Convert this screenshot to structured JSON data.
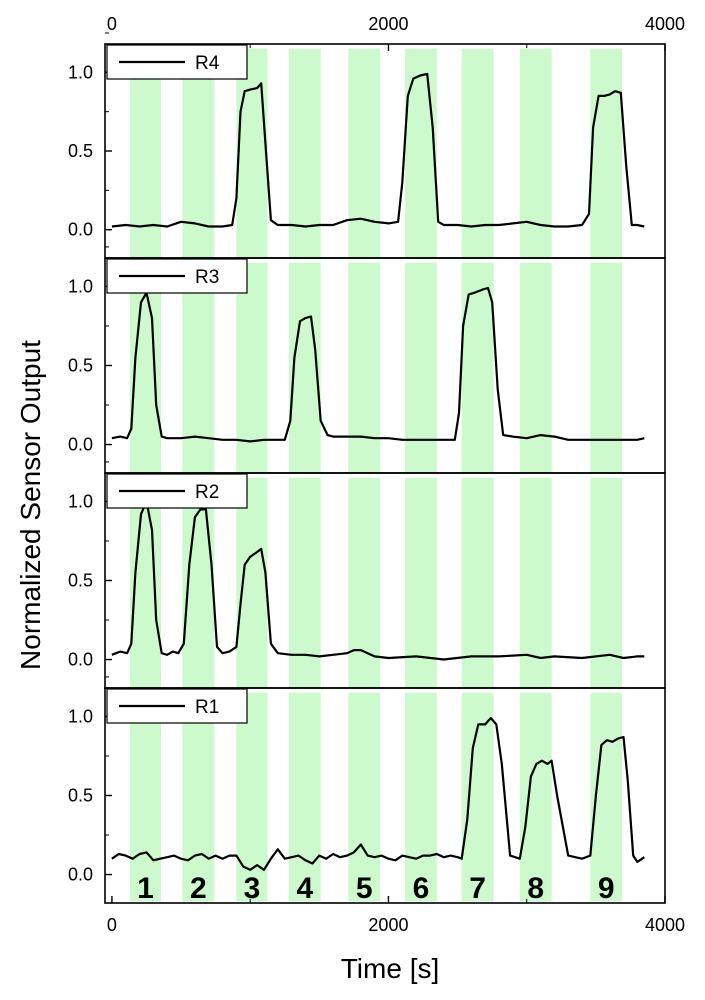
{
  "chart_data": {
    "type": "line",
    "title": "",
    "xlabel": "Time [s]",
    "ylabel": "Normalized Sensor Output",
    "xlim": [
      -50,
      4000
    ],
    "x_ticks": [
      0,
      2000,
      4000
    ],
    "ylim": [
      -0.18,
      1.18
    ],
    "y_ticks": [
      0.0,
      0.5,
      1.0
    ],
    "y_tick_labels": [
      "0.0",
      "0.5",
      "1.0"
    ],
    "grid": false,
    "legend_position": "top-left",
    "colors": {
      "line": "#000000",
      "band": "#ccfacc",
      "frame": "#000000"
    },
    "bands": [
      {
        "label": "1",
        "start": 130,
        "end": 355
      },
      {
        "label": "2",
        "start": 510,
        "end": 740
      },
      {
        "label": "3",
        "start": 900,
        "end": 1125
      },
      {
        "label": "4",
        "start": 1280,
        "end": 1510
      },
      {
        "label": "5",
        "start": 1710,
        "end": 1940
      },
      {
        "label": "6",
        "start": 2120,
        "end": 2350
      },
      {
        "label": "7",
        "start": 2530,
        "end": 2760
      },
      {
        "label": "8",
        "start": 2950,
        "end": 3180
      },
      {
        "label": "9",
        "start": 3460,
        "end": 3690
      }
    ],
    "series": [
      {
        "name": "R4",
        "x": [
          0,
          100,
          200,
          300,
          400,
          500,
          600,
          700,
          800,
          870,
          900,
          930,
          960,
          1000,
          1050,
          1080,
          1110,
          1150,
          1200,
          1300,
          1400,
          1500,
          1600,
          1700,
          1800,
          1900,
          2000,
          2070,
          2100,
          2140,
          2180,
          2230,
          2280,
          2320,
          2360,
          2400,
          2500,
          2600,
          2700,
          2800,
          2900,
          3000,
          3100,
          3200,
          3300,
          3400,
          3450,
          3480,
          3520,
          3560,
          3600,
          3640,
          3680,
          3720,
          3760,
          3800,
          3850
        ],
        "values": [
          0.02,
          0.03,
          0.02,
          0.03,
          0.02,
          0.05,
          0.04,
          0.02,
          0.02,
          0.03,
          0.2,
          0.75,
          0.88,
          0.89,
          0.9,
          0.93,
          0.55,
          0.06,
          0.03,
          0.03,
          0.02,
          0.03,
          0.03,
          0.06,
          0.07,
          0.05,
          0.04,
          0.05,
          0.3,
          0.85,
          0.96,
          0.98,
          0.99,
          0.65,
          0.05,
          0.03,
          0.03,
          0.02,
          0.03,
          0.03,
          0.04,
          0.05,
          0.03,
          0.02,
          0.02,
          0.03,
          0.1,
          0.65,
          0.85,
          0.85,
          0.86,
          0.88,
          0.87,
          0.4,
          0.03,
          0.03,
          0.02
        ]
      },
      {
        "name": "R3",
        "x": [
          0,
          60,
          110,
          140,
          170,
          210,
          250,
          290,
          320,
          360,
          400,
          500,
          600,
          700,
          800,
          900,
          1000,
          1100,
          1200,
          1250,
          1290,
          1320,
          1360,
          1400,
          1440,
          1470,
          1510,
          1560,
          1600,
          1700,
          1800,
          1900,
          2000,
          2100,
          2200,
          2300,
          2400,
          2480,
          2510,
          2540,
          2580,
          2620,
          2680,
          2720,
          2750,
          2790,
          2830,
          2900,
          3000,
          3100,
          3200,
          3300,
          3400,
          3500,
          3600,
          3700,
          3800,
          3850
        ],
        "values": [
          0.04,
          0.05,
          0.04,
          0.1,
          0.55,
          0.9,
          0.96,
          0.8,
          0.25,
          0.05,
          0.04,
          0.04,
          0.05,
          0.04,
          0.03,
          0.03,
          0.02,
          0.03,
          0.03,
          0.03,
          0.15,
          0.55,
          0.78,
          0.8,
          0.81,
          0.6,
          0.15,
          0.06,
          0.05,
          0.05,
          0.05,
          0.04,
          0.04,
          0.03,
          0.03,
          0.03,
          0.03,
          0.03,
          0.2,
          0.75,
          0.95,
          0.96,
          0.98,
          0.99,
          0.9,
          0.35,
          0.06,
          0.05,
          0.04,
          0.06,
          0.05,
          0.03,
          0.03,
          0.03,
          0.03,
          0.03,
          0.03,
          0.04
        ]
      },
      {
        "name": "R2",
        "x": [
          0,
          60,
          110,
          140,
          170,
          210,
          250,
          290,
          320,
          360,
          400,
          440,
          480,
          520,
          560,
          600,
          640,
          680,
          720,
          760,
          800,
          850,
          900,
          930,
          960,
          1000,
          1050,
          1080,
          1110,
          1150,
          1200,
          1300,
          1400,
          1500,
          1600,
          1700,
          1750,
          1800,
          1900,
          2000,
          2200,
          2400,
          2600,
          2800,
          3000,
          3100,
          3200,
          3400,
          3600,
          3700,
          3800,
          3850
        ],
        "values": [
          0.03,
          0.05,
          0.04,
          0.1,
          0.55,
          0.92,
          1.0,
          0.82,
          0.25,
          0.04,
          0.03,
          0.05,
          0.04,
          0.1,
          0.6,
          0.9,
          0.95,
          0.95,
          0.6,
          0.08,
          0.04,
          0.05,
          0.08,
          0.35,
          0.6,
          0.65,
          0.68,
          0.7,
          0.55,
          0.1,
          0.04,
          0.03,
          0.03,
          0.02,
          0.03,
          0.04,
          0.06,
          0.06,
          0.02,
          0.01,
          0.02,
          0.0,
          0.02,
          0.02,
          0.03,
          0.01,
          0.02,
          0.01,
          0.03,
          0.01,
          0.02,
          0.02
        ]
      },
      {
        "name": "R1",
        "x": [
          0,
          50,
          100,
          150,
          200,
          250,
          300,
          350,
          400,
          450,
          500,
          550,
          600,
          650,
          700,
          750,
          800,
          850,
          900,
          950,
          1000,
          1050,
          1100,
          1150,
          1200,
          1250,
          1300,
          1350,
          1400,
          1450,
          1500,
          1550,
          1600,
          1650,
          1700,
          1750,
          1800,
          1850,
          1900,
          1950,
          2000,
          2050,
          2100,
          2150,
          2200,
          2250,
          2300,
          2350,
          2400,
          2450,
          2500,
          2530,
          2570,
          2610,
          2650,
          2700,
          2740,
          2780,
          2820,
          2880,
          2950,
          2990,
          3030,
          3070,
          3110,
          3150,
          3180,
          3220,
          3300,
          3400,
          3460,
          3500,
          3540,
          3580,
          3620,
          3660,
          3700,
          3730,
          3770,
          3800,
          3850
        ],
        "values": [
          0.1,
          0.13,
          0.12,
          0.1,
          0.13,
          0.14,
          0.09,
          0.1,
          0.11,
          0.12,
          0.1,
          0.09,
          0.12,
          0.13,
          0.1,
          0.12,
          0.1,
          0.12,
          0.12,
          0.05,
          0.03,
          0.06,
          0.03,
          0.1,
          0.16,
          0.1,
          0.11,
          0.12,
          0.09,
          0.07,
          0.12,
          0.1,
          0.13,
          0.11,
          0.12,
          0.14,
          0.19,
          0.12,
          0.11,
          0.12,
          0.1,
          0.09,
          0.12,
          0.11,
          0.1,
          0.12,
          0.12,
          0.13,
          0.11,
          0.12,
          0.11,
          0.1,
          0.35,
          0.8,
          0.95,
          0.95,
          0.99,
          0.95,
          0.7,
          0.12,
          0.1,
          0.3,
          0.62,
          0.7,
          0.72,
          0.7,
          0.72,
          0.5,
          0.12,
          0.1,
          0.12,
          0.5,
          0.82,
          0.85,
          0.84,
          0.86,
          0.87,
          0.6,
          0.12,
          0.08,
          0.11
        ]
      }
    ],
    "band_label_series": "R1"
  }
}
